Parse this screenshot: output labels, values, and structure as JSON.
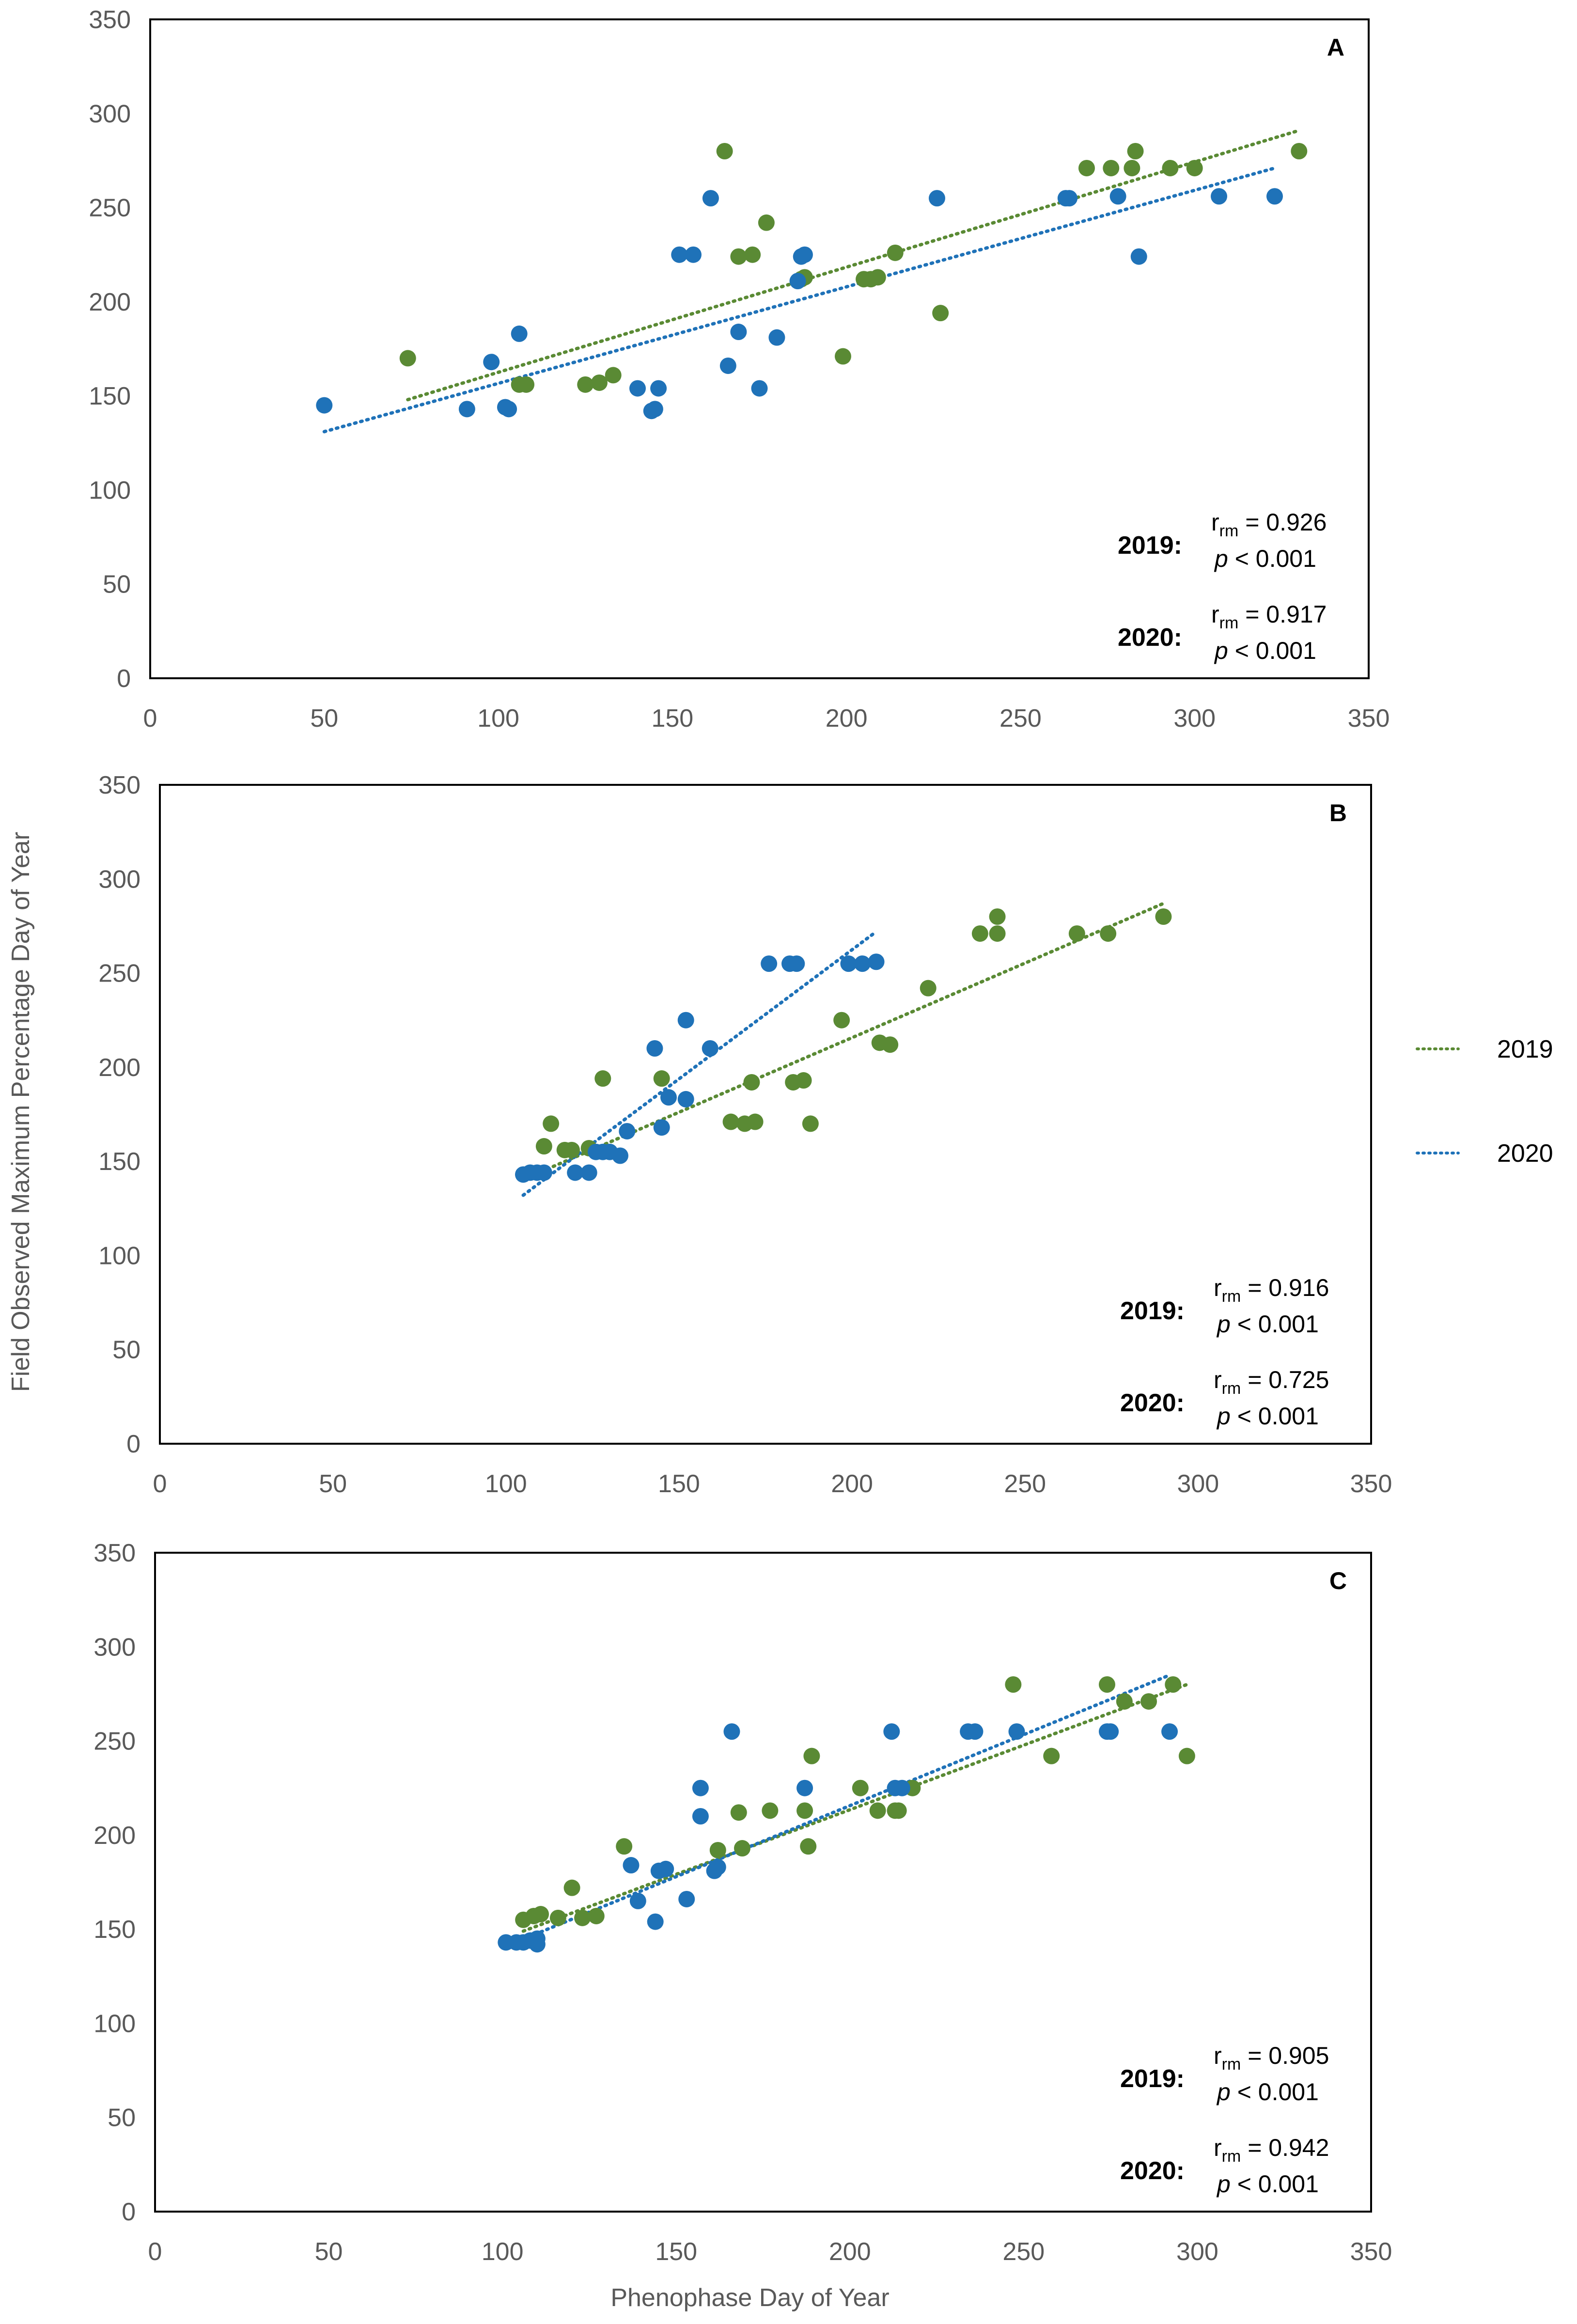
{
  "colors": {
    "y2019": "#5a8a34",
    "y2020": "#1f72b8",
    "frame": "#000000",
    "tick_text": "#595959"
  },
  "figure": {
    "xlabel": "Phenophase Day of Year",
    "ylabel": "Field Observed Maximum Percentage Day of Year"
  },
  "legend": [
    {
      "label": "2019",
      "color_key": "y2019"
    },
    {
      "label": "2020",
      "color_key": "y2020"
    }
  ],
  "chart_data": [
    {
      "type": "scatter",
      "panel": "A",
      "xlim": [
        0,
        350
      ],
      "ylim": [
        0,
        350
      ],
      "x_ticks": [
        "0",
        "50",
        "100",
        "150",
        "200",
        "250",
        "300",
        "350"
      ],
      "y_ticks": [
        "0",
        "50",
        "100",
        "150",
        "200",
        "250",
        "300",
        "350"
      ],
      "stats": [
        {
          "year": "2019:",
          "r_symbol": "r",
          "r_sub": "rm",
          "r_value": "= 0.926",
          "p_symbol": "p",
          "p_value": "< 0.001"
        },
        {
          "year": "2020:",
          "r_symbol": "r",
          "r_sub": "rm",
          "r_value": "= 0.917",
          "p_symbol": "p",
          "p_value": "< 0.001"
        }
      ],
      "series": [
        {
          "name": "2019",
          "color_key": "y2019",
          "points": [
            [
              74,
              170
            ],
            [
              106,
              156
            ],
            [
              108,
              156
            ],
            [
              125,
              156
            ],
            [
              129,
              157
            ],
            [
              133,
              161
            ],
            [
              165,
              280
            ],
            [
              169,
              224
            ],
            [
              173,
              225
            ],
            [
              177,
              242
            ],
            [
              187,
              212
            ],
            [
              188,
              213
            ],
            [
              199,
              171
            ],
            [
              205,
              212
            ],
            [
              207,
              212
            ],
            [
              209,
              213
            ],
            [
              214,
              226
            ],
            [
              227,
              194
            ],
            [
              269,
              271
            ],
            [
              276,
              271
            ],
            [
              282,
              271
            ],
            [
              283,
              280
            ],
            [
              293,
              271
            ],
            [
              300,
              271
            ],
            [
              330,
              280
            ]
          ],
          "trend": [
            [
              74,
              148
            ],
            [
              330,
              291
            ]
          ]
        },
        {
          "name": "2020",
          "color_key": "y2020",
          "points": [
            [
              50,
              145
            ],
            [
              91,
              143
            ],
            [
              98,
              168
            ],
            [
              102,
              144
            ],
            [
              103,
              143
            ],
            [
              106,
              183
            ],
            [
              140,
              154
            ],
            [
              144,
              142
            ],
            [
              145,
              143
            ],
            [
              146,
              154
            ],
            [
              152,
              225
            ],
            [
              156,
              225
            ],
            [
              161,
              255
            ],
            [
              166,
              166
            ],
            [
              169,
              184
            ],
            [
              175,
              154
            ],
            [
              180,
              181
            ],
            [
              186,
              211
            ],
            [
              187,
              224
            ],
            [
              188,
              225
            ],
            [
              226,
              255
            ],
            [
              263,
              255
            ],
            [
              264,
              255
            ],
            [
              278,
              256
            ],
            [
              284,
              224
            ],
            [
              307,
              256
            ],
            [
              323,
              256
            ]
          ],
          "trend": [
            [
              50,
              131
            ],
            [
              323,
              271
            ]
          ]
        }
      ]
    },
    {
      "type": "scatter",
      "panel": "B",
      "xlim": [
        0,
        350
      ],
      "ylim": [
        0,
        350
      ],
      "x_ticks": [
        "0",
        "50",
        "100",
        "150",
        "200",
        "250",
        "300",
        "350"
      ],
      "y_ticks": [
        "0",
        "50",
        "100",
        "150",
        "200",
        "250",
        "300",
        "350"
      ],
      "stats": [
        {
          "year": "2019:",
          "r_symbol": "r",
          "r_sub": "rm",
          "r_value": "= 0.916",
          "p_symbol": "p",
          "p_value": "< 0.001"
        },
        {
          "year": "2020:",
          "r_symbol": "r",
          "r_sub": "rm",
          "r_value": "= 0.725",
          "p_symbol": "p",
          "p_value": "< 0.001"
        }
      ],
      "series": [
        {
          "name": "2019",
          "color_key": "y2019",
          "points": [
            [
              111,
              158
            ],
            [
              113,
              170
            ],
            [
              117,
              156
            ],
            [
              119,
              156
            ],
            [
              124,
              157
            ],
            [
              128,
              194
            ],
            [
              145,
              194
            ],
            [
              165,
              171
            ],
            [
              169,
              170
            ],
            [
              171,
              192
            ],
            [
              172,
              171
            ],
            [
              183,
              192
            ],
            [
              186,
              193
            ],
            [
              188,
              170
            ],
            [
              197,
              225
            ],
            [
              208,
              213
            ],
            [
              211,
              212
            ],
            [
              222,
              242
            ],
            [
              237,
              271
            ],
            [
              242,
              280
            ],
            [
              242,
              271
            ],
            [
              265,
              271
            ],
            [
              274,
              271
            ],
            [
              290,
              280
            ]
          ],
          "trend": [
            [
              107,
              142
            ],
            [
              290,
              287
            ]
          ]
        },
        {
          "name": "2020",
          "color_key": "y2020",
          "points": [
            [
              105,
              143
            ],
            [
              107,
              144
            ],
            [
              109,
              144
            ],
            [
              111,
              144
            ],
            [
              120,
              144
            ],
            [
              124,
              144
            ],
            [
              126,
              155
            ],
            [
              128,
              155
            ],
            [
              130,
              155
            ],
            [
              133,
              153
            ],
            [
              135,
              166
            ],
            [
              143,
              210
            ],
            [
              145,
              168
            ],
            [
              147,
              184
            ],
            [
              152,
              225
            ],
            [
              152,
              183
            ],
            [
              159,
              210
            ],
            [
              176,
              255
            ],
            [
              182,
              255
            ],
            [
              184,
              255
            ],
            [
              199,
              255
            ],
            [
              203,
              255
            ],
            [
              207,
              256
            ]
          ],
          "trend": [
            [
              105,
              132
            ],
            [
              207,
              272
            ]
          ]
        }
      ]
    },
    {
      "type": "scatter",
      "panel": "C",
      "xlim": [
        0,
        350
      ],
      "ylim": [
        0,
        350
      ],
      "x_ticks": [
        "0",
        "50",
        "100",
        "150",
        "200",
        "250",
        "300",
        "350"
      ],
      "y_ticks": [
        "0",
        "50",
        "100",
        "150",
        "200",
        "250",
        "300",
        "350"
      ],
      "stats": [
        {
          "year": "2019:",
          "r_symbol": "r",
          "r_sub": "rm",
          "r_value": "= 0.905",
          "p_symbol": "p",
          "p_value": "< 0.001"
        },
        {
          "year": "2020:",
          "r_symbol": "r",
          "r_sub": "rm",
          "r_value": "= 0.942",
          "p_symbol": "p",
          "p_value": "< 0.001"
        }
      ],
      "series": [
        {
          "name": "2019",
          "color_key": "y2019",
          "points": [
            [
              106,
              155
            ],
            [
              109,
              157
            ],
            [
              111,
              158
            ],
            [
              116,
              156
            ],
            [
              120,
              172
            ],
            [
              123,
              156
            ],
            [
              127,
              157
            ],
            [
              135,
              194
            ],
            [
              162,
              192
            ],
            [
              168,
              212
            ],
            [
              169,
              193
            ],
            [
              177,
              213
            ],
            [
              187,
              213
            ],
            [
              188,
              194
            ],
            [
              189,
              242
            ],
            [
              203,
              225
            ],
            [
              208,
              213
            ],
            [
              213,
              213
            ],
            [
              214,
              213
            ],
            [
              218,
              225
            ],
            [
              247,
              280
            ],
            [
              258,
              242
            ],
            [
              274,
              280
            ],
            [
              279,
              271
            ],
            [
              286,
              271
            ],
            [
              293,
              280
            ],
            [
              297,
              242
            ]
          ],
          "trend": [
            [
              106,
              149
            ],
            [
              297,
              280
            ]
          ]
        },
        {
          "name": "2020",
          "color_key": "y2020",
          "points": [
            [
              101,
              143
            ],
            [
              104,
              143
            ],
            [
              106,
              143
            ],
            [
              108,
              144
            ],
            [
              110,
              142
            ],
            [
              110,
              145
            ],
            [
              137,
              184
            ],
            [
              139,
              165
            ],
            [
              144,
              154
            ],
            [
              145,
              181
            ],
            [
              147,
              182
            ],
            [
              153,
              166
            ],
            [
              157,
              210
            ],
            [
              157,
              225
            ],
            [
              161,
              181
            ],
            [
              162,
              183
            ],
            [
              166,
              255
            ],
            [
              187,
              225
            ],
            [
              212,
              255
            ],
            [
              213,
              225
            ],
            [
              215,
              225
            ],
            [
              234,
              255
            ],
            [
              236,
              255
            ],
            [
              248,
              255
            ],
            [
              274,
              255
            ],
            [
              275,
              255
            ],
            [
              292,
              255
            ]
          ],
          "trend": [
            [
              101,
              141
            ],
            [
              292,
              285
            ]
          ]
        }
      ]
    }
  ]
}
